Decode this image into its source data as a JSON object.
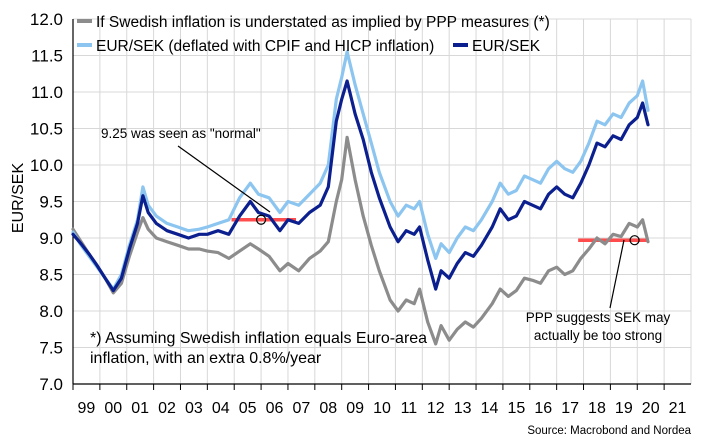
{
  "chart_data": {
    "type": "line",
    "ylabel": "EUR/SEK",
    "ylim": [
      7.0,
      12.0
    ],
    "yticks": [
      "12.0",
      "11.5",
      "11.0",
      "10.5",
      "10.0",
      "9.5",
      "9.0",
      "8.5",
      "8.0",
      "7.5",
      "7.0"
    ],
    "xlim": [
      1999.0,
      2022.0
    ],
    "xticks": [
      "99",
      "00",
      "01",
      "02",
      "03",
      "04",
      "05",
      "06",
      "07",
      "08",
      "09",
      "10",
      "11",
      "12",
      "13",
      "14",
      "15",
      "16",
      "17",
      "18",
      "19",
      "20",
      "21"
    ],
    "grid": true,
    "legend_position": "top-left",
    "series": [
      {
        "name": "If Swedish inflation is understated as implied by PPP measures (*)",
        "color": "#8c8c8c",
        "points": [
          [
            1999.0,
            9.12
          ],
          [
            1999.3,
            8.95
          ],
          [
            1999.6,
            8.78
          ],
          [
            1999.9,
            8.62
          ],
          [
            2000.2,
            8.45
          ],
          [
            2000.5,
            8.25
          ],
          [
            2000.8,
            8.38
          ],
          [
            2001.1,
            8.75
          ],
          [
            2001.4,
            9.08
          ],
          [
            2001.6,
            9.28
          ],
          [
            2001.8,
            9.12
          ],
          [
            2002.1,
            9.0
          ],
          [
            2002.5,
            8.95
          ],
          [
            2002.9,
            8.9
          ],
          [
            2003.3,
            8.85
          ],
          [
            2003.7,
            8.85
          ],
          [
            2004.0,
            8.82
          ],
          [
            2004.4,
            8.8
          ],
          [
            2004.8,
            8.72
          ],
          [
            2005.2,
            8.82
          ],
          [
            2005.6,
            8.92
          ],
          [
            2005.9,
            8.85
          ],
          [
            2006.3,
            8.75
          ],
          [
            2006.7,
            8.55
          ],
          [
            2007.0,
            8.65
          ],
          [
            2007.4,
            8.55
          ],
          [
            2007.8,
            8.72
          ],
          [
            2008.2,
            8.82
          ],
          [
            2008.5,
            8.95
          ],
          [
            2008.8,
            9.5
          ],
          [
            2009.0,
            9.8
          ],
          [
            2009.2,
            10.38
          ],
          [
            2009.5,
            9.8
          ],
          [
            2009.8,
            9.3
          ],
          [
            2010.1,
            8.9
          ],
          [
            2010.4,
            8.55
          ],
          [
            2010.8,
            8.15
          ],
          [
            2011.1,
            8.0
          ],
          [
            2011.4,
            8.15
          ],
          [
            2011.7,
            8.1
          ],
          [
            2011.9,
            8.3
          ],
          [
            2012.2,
            7.85
          ],
          [
            2012.5,
            7.55
          ],
          [
            2012.7,
            7.8
          ],
          [
            2013.0,
            7.6
          ],
          [
            2013.3,
            7.75
          ],
          [
            2013.6,
            7.85
          ],
          [
            2013.9,
            7.78
          ],
          [
            2014.2,
            7.9
          ],
          [
            2014.6,
            8.1
          ],
          [
            2014.9,
            8.3
          ],
          [
            2015.2,
            8.2
          ],
          [
            2015.5,
            8.28
          ],
          [
            2015.8,
            8.45
          ],
          [
            2016.1,
            8.42
          ],
          [
            2016.4,
            8.38
          ],
          [
            2016.7,
            8.55
          ],
          [
            2017.0,
            8.6
          ],
          [
            2017.3,
            8.5
          ],
          [
            2017.6,
            8.55
          ],
          [
            2017.9,
            8.72
          ],
          [
            2018.2,
            8.85
          ],
          [
            2018.5,
            9.0
          ],
          [
            2018.8,
            8.92
          ],
          [
            2019.1,
            9.05
          ],
          [
            2019.4,
            9.02
          ],
          [
            2019.7,
            9.2
          ],
          [
            2020.0,
            9.15
          ],
          [
            2020.2,
            9.25
          ],
          [
            2020.4,
            8.95
          ]
        ]
      },
      {
        "name": "EUR/SEK (deflated with CPIF and HICP inflation)",
        "color": "#8cc5f0",
        "points": [
          [
            1999.0,
            9.08
          ],
          [
            1999.3,
            8.9
          ],
          [
            1999.6,
            8.75
          ],
          [
            1999.9,
            8.6
          ],
          [
            2000.2,
            8.45
          ],
          [
            2000.5,
            8.3
          ],
          [
            2000.8,
            8.5
          ],
          [
            2001.1,
            8.9
          ],
          [
            2001.4,
            9.25
          ],
          [
            2001.6,
            9.7
          ],
          [
            2001.8,
            9.45
          ],
          [
            2002.1,
            9.3
          ],
          [
            2002.5,
            9.2
          ],
          [
            2002.9,
            9.15
          ],
          [
            2003.3,
            9.1
          ],
          [
            2003.7,
            9.12
          ],
          [
            2004.0,
            9.15
          ],
          [
            2004.4,
            9.2
          ],
          [
            2004.8,
            9.25
          ],
          [
            2005.2,
            9.55
          ],
          [
            2005.6,
            9.75
          ],
          [
            2005.9,
            9.6
          ],
          [
            2006.3,
            9.55
          ],
          [
            2006.7,
            9.35
          ],
          [
            2007.0,
            9.5
          ],
          [
            2007.4,
            9.45
          ],
          [
            2007.8,
            9.6
          ],
          [
            2008.2,
            9.75
          ],
          [
            2008.5,
            10.0
          ],
          [
            2008.8,
            10.9
          ],
          [
            2009.0,
            11.2
          ],
          [
            2009.2,
            11.55
          ],
          [
            2009.5,
            11.1
          ],
          [
            2009.8,
            10.7
          ],
          [
            2010.1,
            10.3
          ],
          [
            2010.4,
            9.9
          ],
          [
            2010.8,
            9.5
          ],
          [
            2011.1,
            9.3
          ],
          [
            2011.4,
            9.45
          ],
          [
            2011.7,
            9.4
          ],
          [
            2011.9,
            9.5
          ],
          [
            2012.2,
            9.05
          ],
          [
            2012.5,
            8.72
          ],
          [
            2012.7,
            8.92
          ],
          [
            2013.0,
            8.8
          ],
          [
            2013.3,
            9.0
          ],
          [
            2013.6,
            9.15
          ],
          [
            2013.9,
            9.1
          ],
          [
            2014.2,
            9.25
          ],
          [
            2014.6,
            9.5
          ],
          [
            2014.9,
            9.75
          ],
          [
            2015.2,
            9.6
          ],
          [
            2015.5,
            9.65
          ],
          [
            2015.8,
            9.85
          ],
          [
            2016.1,
            9.8
          ],
          [
            2016.4,
            9.75
          ],
          [
            2016.7,
            9.95
          ],
          [
            2017.0,
            10.05
          ],
          [
            2017.3,
            9.95
          ],
          [
            2017.6,
            9.9
          ],
          [
            2017.9,
            10.05
          ],
          [
            2018.2,
            10.3
          ],
          [
            2018.5,
            10.6
          ],
          [
            2018.8,
            10.55
          ],
          [
            2019.1,
            10.7
          ],
          [
            2019.4,
            10.65
          ],
          [
            2019.7,
            10.85
          ],
          [
            2020.0,
            10.95
          ],
          [
            2020.2,
            11.15
          ],
          [
            2020.4,
            10.75
          ]
        ]
      },
      {
        "name": "EUR/SEK",
        "color": "#0b1f8f",
        "points": [
          [
            1999.0,
            9.05
          ],
          [
            1999.3,
            8.92
          ],
          [
            1999.6,
            8.78
          ],
          [
            1999.9,
            8.62
          ],
          [
            2000.2,
            8.45
          ],
          [
            2000.5,
            8.28
          ],
          [
            2000.8,
            8.45
          ],
          [
            2001.1,
            8.85
          ],
          [
            2001.4,
            9.2
          ],
          [
            2001.6,
            9.58
          ],
          [
            2001.8,
            9.35
          ],
          [
            2002.1,
            9.2
          ],
          [
            2002.5,
            9.1
          ],
          [
            2002.9,
            9.05
          ],
          [
            2003.3,
            9.0
          ],
          [
            2003.7,
            9.05
          ],
          [
            2004.0,
            9.05
          ],
          [
            2004.4,
            9.1
          ],
          [
            2004.8,
            9.05
          ],
          [
            2005.2,
            9.3
          ],
          [
            2005.6,
            9.5
          ],
          [
            2005.9,
            9.35
          ],
          [
            2006.3,
            9.3
          ],
          [
            2006.7,
            9.1
          ],
          [
            2007.0,
            9.25
          ],
          [
            2007.4,
            9.2
          ],
          [
            2007.8,
            9.35
          ],
          [
            2008.2,
            9.45
          ],
          [
            2008.5,
            9.7
          ],
          [
            2008.8,
            10.6
          ],
          [
            2009.0,
            10.9
          ],
          [
            2009.2,
            11.15
          ],
          [
            2009.5,
            10.7
          ],
          [
            2009.8,
            10.35
          ],
          [
            2010.1,
            9.9
          ],
          [
            2010.4,
            9.55
          ],
          [
            2010.8,
            9.15
          ],
          [
            2011.1,
            8.95
          ],
          [
            2011.4,
            9.1
          ],
          [
            2011.7,
            9.05
          ],
          [
            2011.9,
            9.15
          ],
          [
            2012.2,
            8.7
          ],
          [
            2012.5,
            8.3
          ],
          [
            2012.7,
            8.55
          ],
          [
            2013.0,
            8.45
          ],
          [
            2013.3,
            8.65
          ],
          [
            2013.6,
            8.8
          ],
          [
            2013.9,
            8.75
          ],
          [
            2014.2,
            8.9
          ],
          [
            2014.6,
            9.15
          ],
          [
            2014.9,
            9.4
          ],
          [
            2015.2,
            9.25
          ],
          [
            2015.5,
            9.3
          ],
          [
            2015.8,
            9.5
          ],
          [
            2016.1,
            9.45
          ],
          [
            2016.4,
            9.4
          ],
          [
            2016.7,
            9.6
          ],
          [
            2017.0,
            9.7
          ],
          [
            2017.3,
            9.6
          ],
          [
            2017.6,
            9.55
          ],
          [
            2017.9,
            9.75
          ],
          [
            2018.2,
            10.0
          ],
          [
            2018.5,
            10.3
          ],
          [
            2018.8,
            10.25
          ],
          [
            2019.1,
            10.4
          ],
          [
            2019.4,
            10.35
          ],
          [
            2019.7,
            10.55
          ],
          [
            2020.0,
            10.65
          ],
          [
            2020.2,
            10.85
          ],
          [
            2020.4,
            10.55
          ]
        ]
      }
    ],
    "reference_lines": [
      {
        "color": "#ff4d4d",
        "x_from": 2004.9,
        "x_to": 2007.3,
        "y": 9.25
      },
      {
        "color": "#ff4d4d",
        "x_from": 2017.8,
        "x_to": 2020.4,
        "y": 8.97
      }
    ],
    "markers": [
      {
        "x": 2006.0,
        "y": 9.25
      },
      {
        "x": 2019.9,
        "y": 8.97
      }
    ],
    "annotations": [
      {
        "text": "9.25 was seen as \"normal\"",
        "target_x": 2006.0,
        "target_y": 9.25
      },
      {
        "text_lines": [
          "PPP suggests SEK may",
          "actually be too strong"
        ],
        "target_x": 2019.9,
        "target_y": 8.97
      }
    ],
    "footnote_lines": [
      "*) Assuming Swedish inflation equals Euro-area",
      "inflation, with an extra 0.8%/year"
    ],
    "source": "Source: Macrobond and Nordea"
  }
}
